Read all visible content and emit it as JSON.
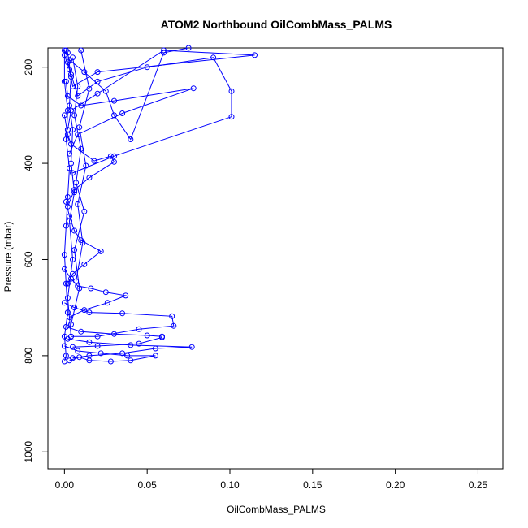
{
  "chart_data": {
    "type": "line",
    "title": "ATOM2 Northbound OilCombMass_PALMS",
    "xlabel": "OilCombMass_PALMS",
    "ylabel": "Pressure (mbar)",
    "xlim": [
      -0.01,
      0.265
    ],
    "ylim": [
      1035,
      160
    ],
    "y_reversed": true,
    "xticks": [
      0.0,
      0.05,
      0.1,
      0.15,
      0.2,
      0.25
    ],
    "xtick_labels": [
      "0.00",
      "0.05",
      "0.10",
      "0.15",
      "0.20",
      "0.25"
    ],
    "yticks": [
      200,
      400,
      600,
      800,
      1000
    ],
    "ytick_labels": [
      "200",
      "400",
      "600",
      "800",
      "1000"
    ],
    "grid": false,
    "legend": "none",
    "series_color": "#0000ff",
    "marker": "open-circle",
    "series": [
      {
        "profile": "profile-1",
        "x": [
          0.001,
          0.003,
          0.012,
          0.025,
          0.03,
          0.04,
          0.06,
          0.075
        ],
        "y": [
          165,
          185,
          210,
          250,
          300,
          350,
          170,
          160
        ]
      },
      {
        "profile": "profile-2",
        "x": [
          0.002,
          0.004,
          0.008,
          0.02,
          0.05,
          0.09,
          0.101,
          0.101,
          0.03,
          0.005
        ],
        "y": [
          190,
          215,
          260,
          230,
          200,
          180,
          250,
          303,
          385,
          420
        ]
      },
      {
        "profile": "profile-3",
        "x": [
          0.0,
          0.003,
          0.005,
          0.02,
          0.115,
          0.06,
          0.02,
          0.004,
          0.002
        ],
        "y": [
          175,
          205,
          240,
          210,
          175,
          165,
          255,
          290,
          330
        ]
      },
      {
        "profile": "profile-4",
        "x": [
          0.001,
          0.002,
          0.01,
          0.03,
          0.078,
          0.035,
          0.008,
          0.003
        ],
        "y": [
          230,
          260,
          280,
          270,
          244,
          296,
          340,
          380
        ]
      },
      {
        "profile": "profile-5",
        "x": [
          0.0,
          0.002,
          0.004,
          0.018,
          0.028,
          0.03,
          0.015,
          0.006,
          0.002
        ],
        "y": [
          300,
          340,
          360,
          395,
          385,
          397,
          430,
          455,
          490
        ]
      },
      {
        "profile": "profile-6",
        "x": [
          0.001,
          0.003,
          0.006,
          0.01,
          0.022,
          0.012,
          0.005,
          0.002
        ],
        "y": [
          480,
          510,
          540,
          560,
          583,
          610,
          630,
          650
        ]
      },
      {
        "profile": "profile-7",
        "x": [
          0.0,
          0.004,
          0.008,
          0.016,
          0.025,
          0.037,
          0.026,
          0.012,
          0.003
        ],
        "y": [
          620,
          640,
          655,
          660,
          668,
          675,
          690,
          705,
          720
        ]
      },
      {
        "profile": "profile-8",
        "x": [
          0.0,
          0.006,
          0.015,
          0.035,
          0.065,
          0.066,
          0.045,
          0.02,
          0.004
        ],
        "y": [
          690,
          700,
          710,
          712,
          718,
          738,
          745,
          760,
          760
        ]
      },
      {
        "profile": "profile-9",
        "x": [
          0.001,
          0.01,
          0.03,
          0.05,
          0.059,
          0.059,
          0.045,
          0.02,
          0.005
        ],
        "y": [
          740,
          750,
          755,
          758,
          760,
          762,
          775,
          780,
          782
        ]
      },
      {
        "profile": "profile-10",
        "x": [
          0.002,
          0.015,
          0.04,
          0.077,
          0.055,
          0.035,
          0.015,
          0.005
        ],
        "y": [
          765,
          772,
          778,
          782,
          785,
          795,
          800,
          805
        ]
      },
      {
        "profile": "profile-11",
        "x": [
          0.0,
          0.008,
          0.022,
          0.038,
          0.055,
          0.04,
          0.028,
          0.015,
          0.009,
          0.003
        ],
        "y": [
          780,
          790,
          795,
          800,
          800,
          810,
          812,
          810,
          803,
          810
        ]
      },
      {
        "profile": "profile-12",
        "x": [
          0.0,
          0.0,
          0.002,
          0.001,
          0.003,
          0.002,
          0.001,
          0.0,
          0.001,
          0.002,
          0.0,
          0.001,
          0.0
        ],
        "y": [
          165,
          230,
          290,
          350,
          410,
          470,
          530,
          590,
          650,
          710,
          760,
          800,
          812
        ]
      },
      {
        "profile": "profile-13",
        "x": [
          0.002,
          0.004,
          0.003,
          0.005,
          0.004,
          0.006,
          0.003,
          0.005,
          0.002,
          0.004
        ],
        "y": [
          170,
          220,
          280,
          330,
          400,
          460,
          520,
          600,
          680,
          760
        ]
      },
      {
        "profile": "profile-14",
        "x": [
          0.005,
          0.008,
          0.006,
          0.01,
          0.007,
          0.012,
          0.006,
          0.009,
          0.004
        ],
        "y": [
          180,
          240,
          300,
          370,
          440,
          500,
          580,
          660,
          735
        ]
      },
      {
        "profile": "profile-15",
        "x": [
          0.01,
          0.015,
          0.009,
          0.013,
          0.008,
          0.011,
          0.007
        ],
        "y": [
          165,
          245,
          325,
          405,
          485,
          565,
          645
        ]
      }
    ]
  }
}
